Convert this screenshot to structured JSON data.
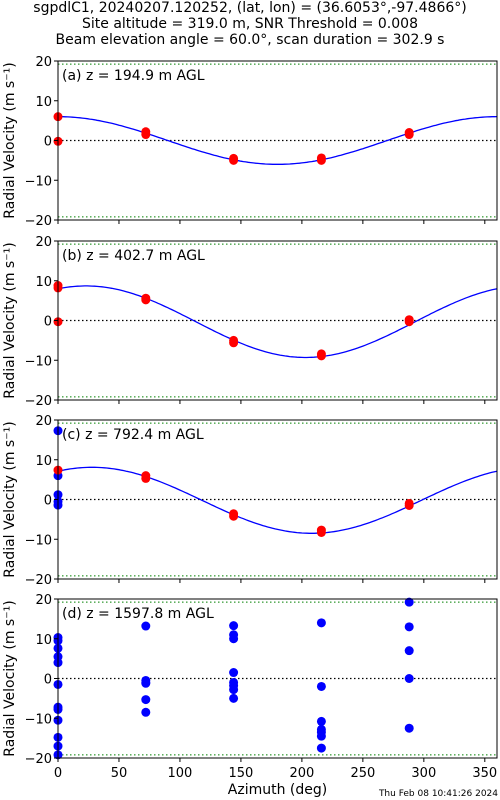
{
  "title": {
    "line1": "sgpdlC1, 20240207.120252, (lat, lon) = (36.6053°,-97.4866°)",
    "line2": "Site altitude = 319.0 m, SNR Threshold = 0.008",
    "line3": "Beam elevation angle = 60.0°, scan duration = 302.9 s"
  },
  "timestamp": "Thu Feb 08 10:41:26 2024",
  "colors": {
    "fit_line": "#0000ff",
    "fit_points": "#ff0000",
    "raw_points": "#0000ff",
    "zero_line": "#000000",
    "threshold_line": "#008000"
  },
  "chart_data": [
    {
      "type": "scatter",
      "panel_label": "(a) z = 194.9 m AGL",
      "xlabel": "",
      "ylabel": "Radial Velocity (m s⁻¹)",
      "xlim": [
        0,
        360
      ],
      "ylim": [
        -20,
        20
      ],
      "x_ticks": [
        0,
        50,
        100,
        150,
        200,
        250,
        300,
        350
      ],
      "x_tick_labels_shown": false,
      "y_ticks": [
        -20,
        -10,
        0,
        10,
        20
      ],
      "zero_line": 0,
      "threshold_lines": [
        -19.2,
        19.2
      ],
      "fit": {
        "mean": 0.0,
        "amplitude": 6.0,
        "phase_deg": 0,
        "shown": true
      },
      "points": {
        "color": "red",
        "x": [
          0,
          0,
          72,
          72,
          144,
          144,
          216,
          216,
          288,
          288
        ],
        "y": [
          6.0,
          -0.2,
          2.2,
          1.5,
          -4.5,
          -5.0,
          -4.4,
          -5.0,
          2.0,
          1.5
        ]
      }
    },
    {
      "type": "scatter",
      "panel_label": "(b) z = 402.7 m AGL",
      "xlabel": "",
      "ylabel": "Radial Velocity (m s⁻¹)",
      "xlim": [
        0,
        360
      ],
      "ylim": [
        -20,
        20
      ],
      "x_ticks": [
        0,
        50,
        100,
        150,
        200,
        250,
        300,
        350
      ],
      "x_tick_labels_shown": false,
      "y_ticks": [
        -20,
        -10,
        0,
        10,
        20
      ],
      "zero_line": 0,
      "threshold_lines": [
        -19.2,
        19.2
      ],
      "fit": {
        "mean": -0.3,
        "amplitude": 9.0,
        "phase_deg": 23,
        "shown": true
      },
      "points": {
        "color": "red",
        "x": [
          0,
          0,
          0,
          72,
          72,
          144,
          144,
          216,
          216,
          288,
          288
        ],
        "y": [
          8.8,
          8.2,
          -0.3,
          5.6,
          5.2,
          -5.0,
          -5.6,
          -8.4,
          -8.9,
          0.2,
          -0.3
        ]
      }
    },
    {
      "type": "scatter",
      "panel_label": "(c) z = 792.4 m AGL",
      "xlabel": "",
      "ylabel": "Radial Velocity (m s⁻¹)",
      "xlim": [
        0,
        360
      ],
      "ylim": [
        -20,
        20
      ],
      "x_ticks": [
        0,
        50,
        100,
        150,
        200,
        250,
        300,
        350
      ],
      "x_tick_labels_shown": false,
      "y_ticks": [
        -20,
        -10,
        0,
        10,
        20
      ],
      "zero_line": 0,
      "threshold_lines": [
        -19.2,
        19.2
      ],
      "fit": {
        "mean": -0.2,
        "amplitude": 8.3,
        "phase_deg": 28,
        "shown": true
      },
      "raw_points": {
        "color": "blue",
        "x": [
          0,
          0,
          0,
          0,
          0
        ],
        "y": [
          17.3,
          6.0,
          1.2,
          -0.5,
          -1.4
        ]
      },
      "points": {
        "color": "red",
        "x": [
          0,
          72,
          72,
          144,
          144,
          216,
          216,
          288,
          288
        ],
        "y": [
          7.4,
          6.0,
          5.3,
          -3.6,
          -4.2,
          -7.7,
          -8.3,
          -1.0,
          -1.5
        ]
      }
    },
    {
      "type": "scatter",
      "panel_label": "(d) z = 1597.8 m AGL",
      "xlabel": "Azimuth (deg)",
      "ylabel": "Radial Velocity (m s⁻¹)",
      "xlim": [
        0,
        360
      ],
      "ylim": [
        -20,
        20
      ],
      "x_ticks": [
        0,
        50,
        100,
        150,
        200,
        250,
        300,
        350
      ],
      "x_tick_labels_shown": true,
      "y_ticks": [
        -20,
        -10,
        0,
        10,
        20
      ],
      "zero_line": 0,
      "threshold_lines": [
        -19.2,
        19.2
      ],
      "fit": {
        "shown": false
      },
      "raw_points": {
        "color": "blue",
        "x": [
          0,
          0,
          0,
          0,
          0,
          0,
          0,
          0,
          0,
          0,
          0,
          0,
          72,
          72,
          72,
          72,
          72,
          72,
          144,
          144,
          144,
          144,
          144,
          144,
          144,
          144,
          216,
          216,
          216,
          216,
          216,
          216,
          216,
          288,
          288,
          288,
          288,
          288
        ],
        "y": [
          10.3,
          9.5,
          7.6,
          5.5,
          4.0,
          -1.5,
          -7.2,
          -7.8,
          -10.5,
          -14.8,
          -17.0,
          -19.2,
          13.2,
          -0.5,
          -1.2,
          -5.3,
          -8.5,
          -1.0,
          13.3,
          11.0,
          10.0,
          1.5,
          -1.0,
          -1.8,
          -2.8,
          -5.0,
          14.0,
          -2.0,
          -10.8,
          -12.8,
          -13.5,
          -14.5,
          -17.5,
          19.2,
          13.0,
          7.0,
          0.0,
          -12.5
        ]
      }
    }
  ]
}
